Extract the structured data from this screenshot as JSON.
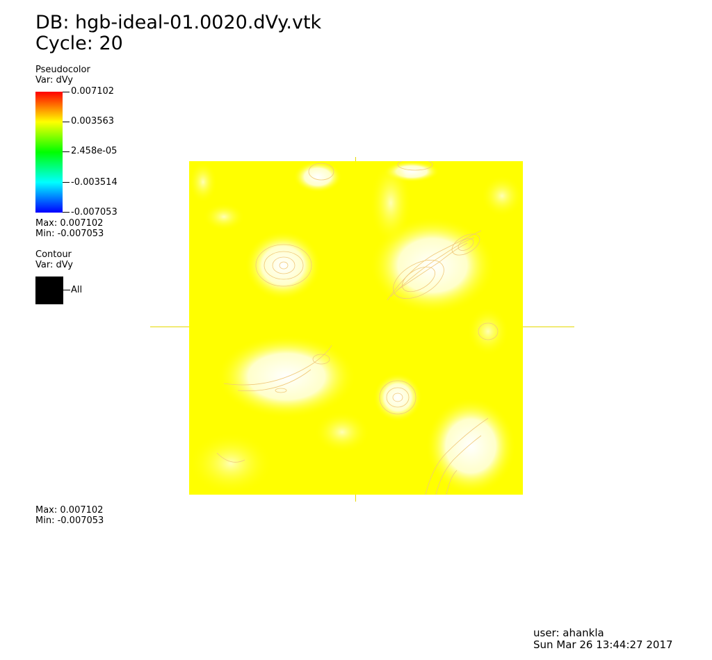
{
  "header": {
    "db_line": "DB: hgb-ideal-01.0020.dVy.vtk",
    "cycle_line": "Cycle: 20"
  },
  "pseudocolor_legend": {
    "title": "Pseudocolor",
    "var": "Var: dVy",
    "ticks": [
      "0.007102",
      "0.003563",
      "2.458e-05",
      "-0.003514",
      "-0.007053"
    ],
    "max": "Max:  0.007102",
    "min": "Min: -0.007053",
    "colormap": [
      "#ff0000",
      "#ffff00",
      "#00ff00",
      "#00ffff",
      "#0000ff"
    ]
  },
  "contour_legend": {
    "title": "Contour",
    "var": "Var: dVy",
    "swatch_label": "All",
    "swatch_color": "#000000"
  },
  "plot_extents": {
    "max": "Max:  0.007102",
    "min": "Min: -0.007053"
  },
  "footer": {
    "user": "user: ahankla",
    "timestamp": "Sun Mar 26 13:44:27 2017"
  },
  "colors": {
    "field_base": "#ffff00",
    "highlight": "#ffffff",
    "contour_line": "#f0c878",
    "axis_line": "#e6d800"
  }
}
